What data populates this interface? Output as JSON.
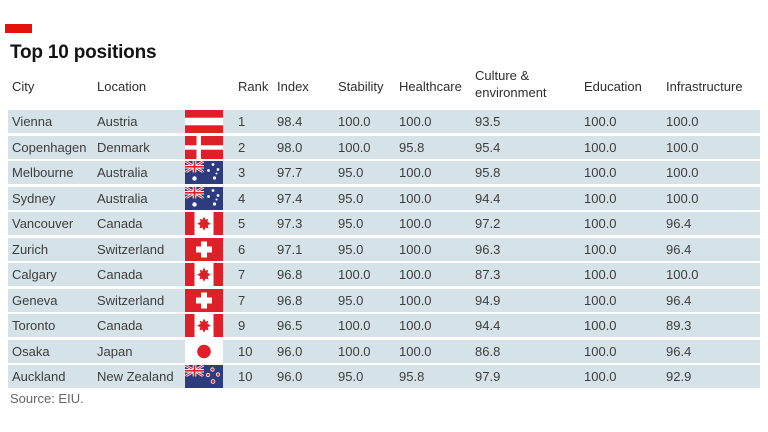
{
  "chart_data": {
    "type": "table",
    "title": "Top 10 positions",
    "source": "Source: EIU.",
    "columns": [
      "City",
      "Location",
      "Rank",
      "Index",
      "Stability",
      "Healthcare",
      "Culture & environment",
      "Education",
      "Infrastructure"
    ],
    "rows": [
      {
        "city": "Vienna",
        "location": "Austria",
        "flag": "austria",
        "rank": "1",
        "index": "98.4",
        "stability": "100.0",
        "healthcare": "100.0",
        "culture": "93.5",
        "education": "100.0",
        "infrastructure": "100.0"
      },
      {
        "city": "Copenhagen",
        "location": "Denmark",
        "flag": "denmark",
        "rank": "2",
        "index": "98.0",
        "stability": "100.0",
        "healthcare": "95.8",
        "culture": "95.4",
        "education": "100.0",
        "infrastructure": "100.0"
      },
      {
        "city": "Melbourne",
        "location": "Australia",
        "flag": "australia",
        "rank": "3",
        "index": "97.7",
        "stability": "95.0",
        "healthcare": "100.0",
        "culture": "95.8",
        "education": "100.0",
        "infrastructure": "100.0"
      },
      {
        "city": "Sydney",
        "location": "Australia",
        "flag": "australia",
        "rank": "4",
        "index": "97.4",
        "stability": "95.0",
        "healthcare": "100.0",
        "culture": "94.4",
        "education": "100.0",
        "infrastructure": "100.0"
      },
      {
        "city": "Vancouver",
        "location": "Canada",
        "flag": "canada",
        "rank": "5",
        "index": "97.3",
        "stability": "95.0",
        "healthcare": "100.0",
        "culture": "97.2",
        "education": "100.0",
        "infrastructure": "96.4"
      },
      {
        "city": "Zurich",
        "location": "Switzerland",
        "flag": "switzerland",
        "rank": "6",
        "index": "97.1",
        "stability": "95.0",
        "healthcare": "100.0",
        "culture": "96.3",
        "education": "100.0",
        "infrastructure": "96.4"
      },
      {
        "city": "Calgary",
        "location": "Canada",
        "flag": "canada",
        "rank": "7",
        "index": "96.8",
        "stability": "100.0",
        "healthcare": "100.0",
        "culture": "87.3",
        "education": "100.0",
        "infrastructure": "100.0"
      },
      {
        "city": "Geneva",
        "location": "Switzerland",
        "flag": "switzerland",
        "rank": "7",
        "index": "96.8",
        "stability": "95.0",
        "healthcare": "100.0",
        "culture": "94.9",
        "education": "100.0",
        "infrastructure": "96.4"
      },
      {
        "city": "Toronto",
        "location": "Canada",
        "flag": "canada",
        "rank": "9",
        "index": "96.5",
        "stability": "100.0",
        "healthcare": "100.0",
        "culture": "94.4",
        "education": "100.0",
        "infrastructure": "89.3"
      },
      {
        "city": "Osaka",
        "location": "Japan",
        "flag": "japan",
        "rank": "10",
        "index": "96.0",
        "stability": "100.0",
        "healthcare": "100.0",
        "culture": "86.8",
        "education": "100.0",
        "infrastructure": "96.4"
      },
      {
        "city": "Auckland",
        "location": "New Zealand",
        "flag": "new-zealand",
        "rank": "10",
        "index": "96.0",
        "stability": "95.0",
        "healthcare": "95.8",
        "culture": "97.9",
        "education": "100.0",
        "infrastructure": "92.9"
      }
    ],
    "colors": {
      "accent_red": "#e3120b",
      "row_bg": "#d5e3e9",
      "text": "#3d3d3d",
      "source_text": "#666666",
      "flag_red": "#de2128",
      "flag_navy": "#2d3c7e"
    },
    "layout": {
      "legend": "none",
      "grid": "row-bands"
    }
  }
}
